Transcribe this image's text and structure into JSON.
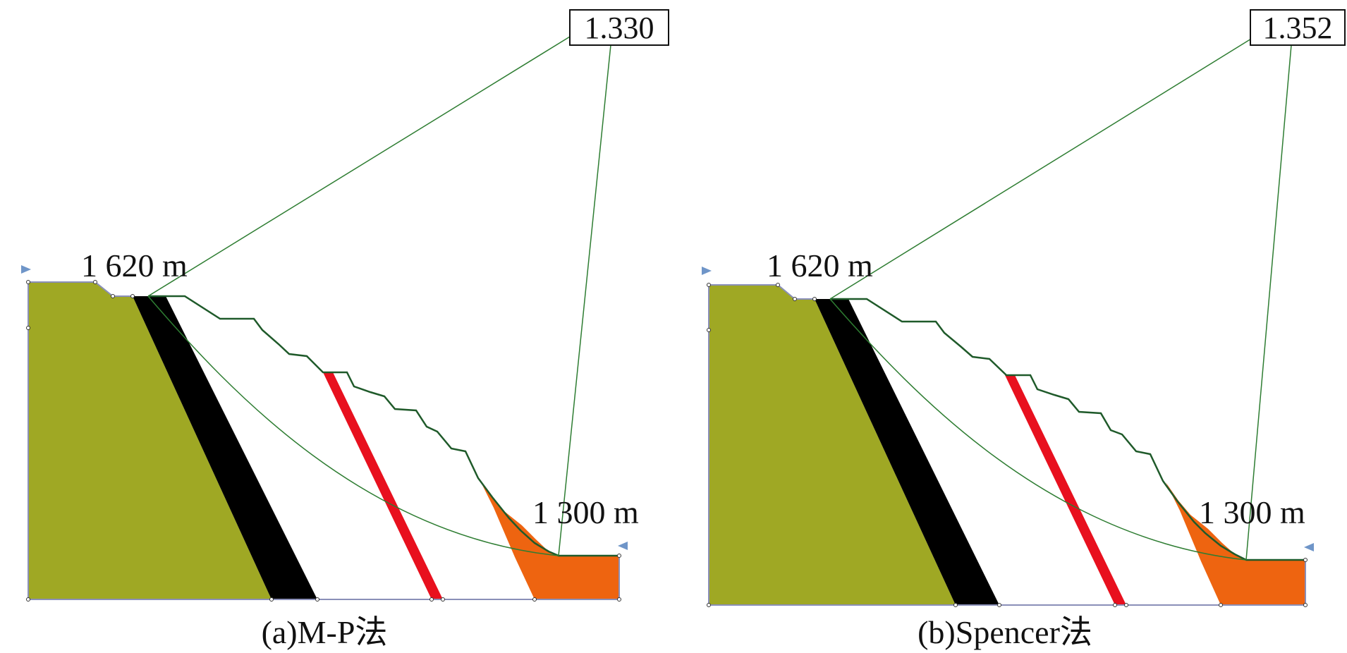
{
  "panels": [
    {
      "factor_of_safety": "1.330",
      "top_elevation_label": "1 620 m",
      "toe_elevation_label": "1 300 m",
      "caption": "(a)M-P法"
    },
    {
      "factor_of_safety": "1.352",
      "top_elevation_label": "1 620 m",
      "toe_elevation_label": "1 300 m",
      "caption": "(b)Spencer法"
    }
  ],
  "colors": {
    "bedrock": "#9fa824",
    "dark_band": "#000000",
    "fault_band": "#e8101e",
    "deposit": "#ee6410",
    "slip_line": "#2e7d32",
    "outline": "#8a8fb8",
    "boundary_marker": "#6f95c8"
  }
}
